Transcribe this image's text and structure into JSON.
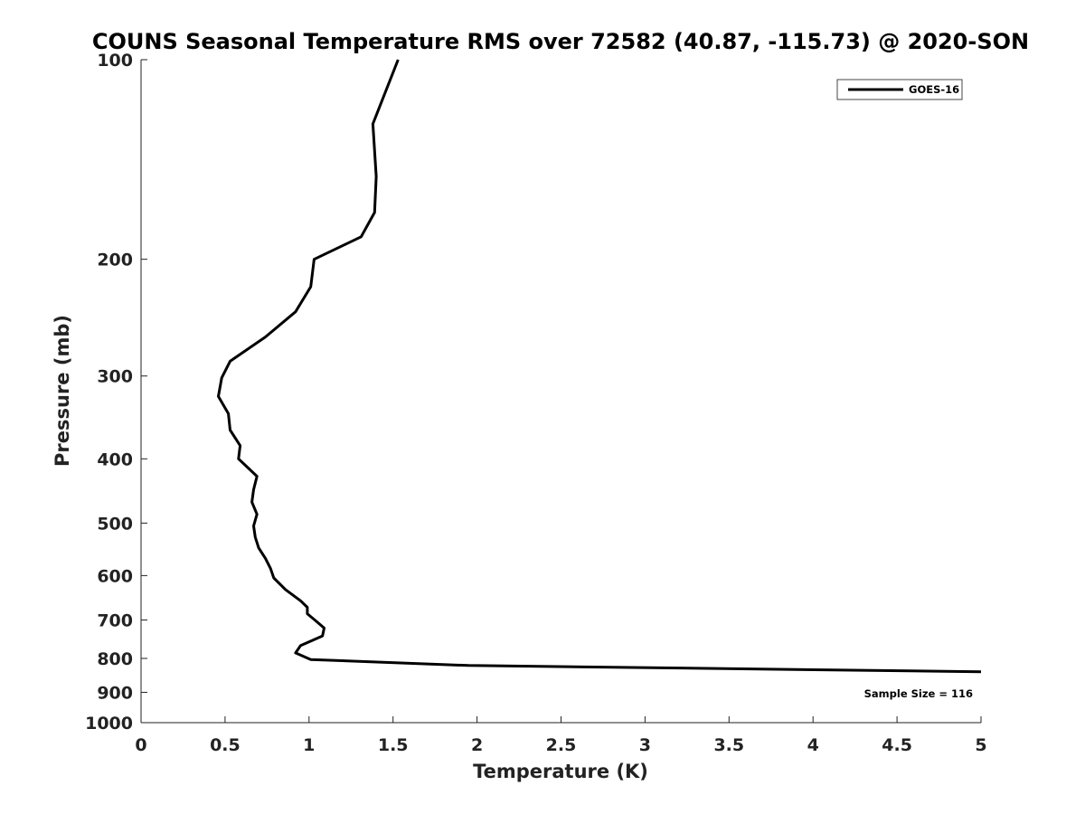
{
  "chart_data": {
    "type": "line",
    "title": "COUNS Seasonal Temperature RMS over 72582 (40.87, -115.73) @ 2020-SON",
    "xlabel": "Temperature (K)",
    "ylabel": "Pressure (mb)",
    "xlim": [
      0,
      5
    ],
    "ylim": [
      1000,
      100
    ],
    "yscale": "log",
    "y_reversed": true,
    "grid": false,
    "legend_position": "top-right",
    "x_ticks": [
      "0",
      "0.5",
      "1",
      "1.5",
      "2",
      "2.5",
      "3",
      "3.5",
      "4",
      "4.5",
      "5"
    ],
    "y_ticks": [
      "100",
      "200",
      "300",
      "400",
      "500",
      "600",
      "700",
      "800",
      "900",
      "1000"
    ],
    "annotation": "Sample Size = 116",
    "series": [
      {
        "name": "GOES-16",
        "color": "#000000",
        "points": [
          {
            "x": 1.53,
            "y": 100
          },
          {
            "x": 1.38,
            "y": 125
          },
          {
            "x": 1.4,
            "y": 150
          },
          {
            "x": 1.39,
            "y": 170
          },
          {
            "x": 1.31,
            "y": 185
          },
          {
            "x": 1.03,
            "y": 200
          },
          {
            "x": 1.01,
            "y": 220
          },
          {
            "x": 0.92,
            "y": 240
          },
          {
            "x": 0.74,
            "y": 262
          },
          {
            "x": 0.53,
            "y": 285
          },
          {
            "x": 0.48,
            "y": 302
          },
          {
            "x": 0.46,
            "y": 322
          },
          {
            "x": 0.52,
            "y": 342
          },
          {
            "x": 0.53,
            "y": 362
          },
          {
            "x": 0.59,
            "y": 382
          },
          {
            "x": 0.58,
            "y": 400
          },
          {
            "x": 0.69,
            "y": 425
          },
          {
            "x": 0.67,
            "y": 445
          },
          {
            "x": 0.66,
            "y": 465
          },
          {
            "x": 0.69,
            "y": 485
          },
          {
            "x": 0.67,
            "y": 505
          },
          {
            "x": 0.68,
            "y": 525
          },
          {
            "x": 0.7,
            "y": 545
          },
          {
            "x": 0.74,
            "y": 565
          },
          {
            "x": 0.77,
            "y": 585
          },
          {
            "x": 0.79,
            "y": 605
          },
          {
            "x": 0.86,
            "y": 630
          },
          {
            "x": 0.95,
            "y": 655
          },
          {
            "x": 0.99,
            "y": 670
          },
          {
            "x": 0.99,
            "y": 685
          },
          {
            "x": 1.04,
            "y": 702
          },
          {
            "x": 1.09,
            "y": 720
          },
          {
            "x": 1.08,
            "y": 740
          },
          {
            "x": 0.95,
            "y": 765
          },
          {
            "x": 0.92,
            "y": 785
          },
          {
            "x": 1.01,
            "y": 803
          },
          {
            "x": 1.95,
            "y": 820
          },
          {
            "x": 5.0,
            "y": 838
          }
        ]
      }
    ]
  }
}
